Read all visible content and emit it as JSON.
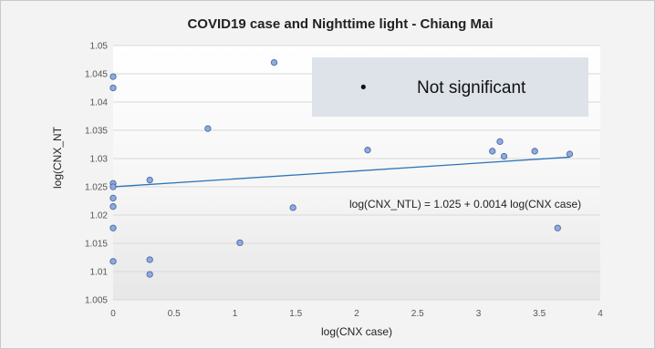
{
  "chart_data": {
    "type": "scatter",
    "title": "COVID19 case and Nighttime light - Chiang Mai",
    "xlabel": "log(CNX case)",
    "ylabel": "log(CNX_NT",
    "xlim": [
      0,
      4
    ],
    "ylim": [
      1.005,
      1.05
    ],
    "x_ticks": [
      "0",
      "0.5",
      "1",
      "1.5",
      "2",
      "2.5",
      "3",
      "3.5",
      "4"
    ],
    "y_ticks": [
      "1.005",
      "1.01",
      "1.015",
      "1.02",
      "1.025",
      "1.03",
      "1.035",
      "1.04",
      "1.045",
      "1.05"
    ],
    "grid": "horizontal",
    "point_color": "#8faadc",
    "point_edge": "#4a6aa8",
    "trendline_color": "#2e75b6",
    "points": [
      {
        "x": 0.0,
        "y": 1.0445
      },
      {
        "x": 0.0,
        "y": 1.0425
      },
      {
        "x": 0.0,
        "y": 1.0256
      },
      {
        "x": 0.0,
        "y": 1.025
      },
      {
        "x": 0.0,
        "y": 1.023
      },
      {
        "x": 0.0,
        "y": 1.0215
      },
      {
        "x": 0.0,
        "y": 1.0177
      },
      {
        "x": 0.0,
        "y": 1.0118
      },
      {
        "x": 0.301,
        "y": 1.0262
      },
      {
        "x": 0.301,
        "y": 1.0121
      },
      {
        "x": 0.301,
        "y": 1.0095
      },
      {
        "x": 0.778,
        "y": 1.0353
      },
      {
        "x": 1.041,
        "y": 1.0151
      },
      {
        "x": 1.322,
        "y": 1.047
      },
      {
        "x": 1.477,
        "y": 1.0213
      },
      {
        "x": 2.09,
        "y": 1.0315
      },
      {
        "x": 3.114,
        "y": 1.0313
      },
      {
        "x": 3.176,
        "y": 1.033
      },
      {
        "x": 3.21,
        "y": 1.0304
      },
      {
        "x": 3.462,
        "y": 1.0313
      },
      {
        "x": 3.65,
        "y": 1.0177
      },
      {
        "x": 3.749,
        "y": 1.0308
      }
    ],
    "trendline": {
      "intercept": 1.025,
      "slope": 0.0014,
      "x_range": [
        0,
        3.75
      ]
    },
    "equation_label": "log(CNX_NTL) = 1.025 + 0.0014 log(CNX case)",
    "legend": {
      "bullet": "•",
      "label": "Not significant"
    }
  }
}
